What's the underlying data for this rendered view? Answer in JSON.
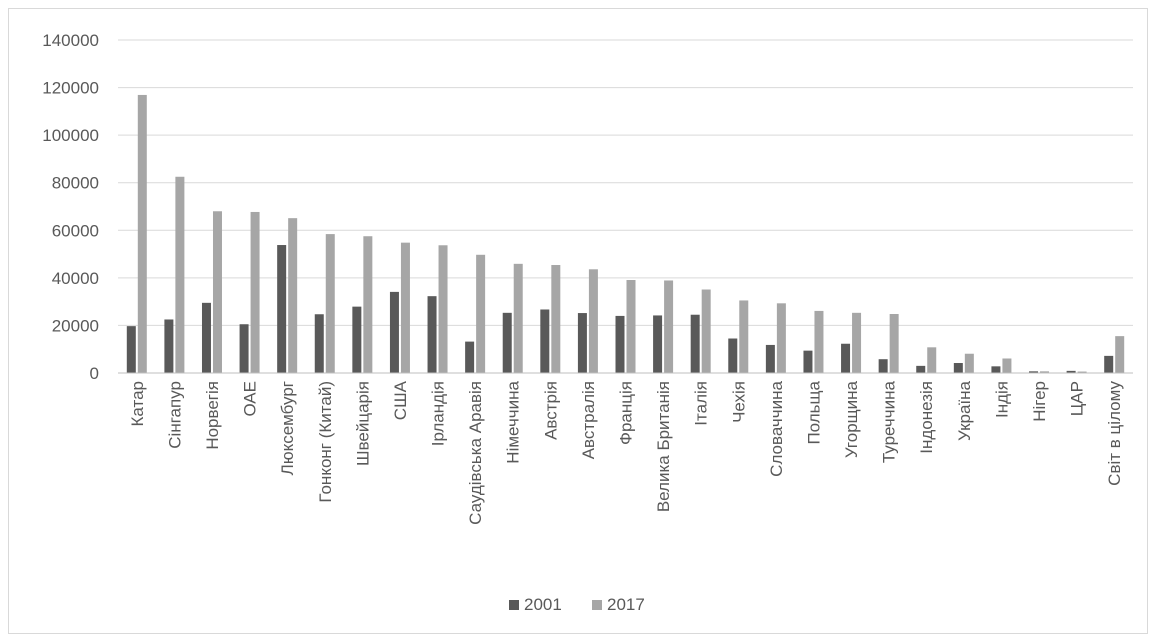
{
  "chart_data": {
    "type": "bar",
    "categories": [
      "Катар",
      "Сінгапур",
      "Норвегія",
      "ОАЕ",
      "Люксембург",
      "Гонконг (Китай)",
      "Швейцарія",
      "США",
      "Ірландія",
      "Саудівська Аравія",
      "Німеччина",
      "Австрія",
      "Австралія",
      "Франція",
      "Велика Британія",
      "Італія",
      "Чехія",
      "Словаччина",
      "Польща",
      "Угорщина",
      "Туреччина",
      "Індонезія",
      "Україна",
      "Індія",
      "Нігер",
      "ЦАР",
      "Світ в цілому"
    ],
    "series": [
      {
        "name": "2001",
        "color": "#595959",
        "values": [
          19700,
          22500,
          29500,
          20500,
          53800,
          24700,
          27900,
          34100,
          32300,
          13200,
          25300,
          26700,
          25200,
          24000,
          24200,
          24500,
          14500,
          11800,
          9400,
          12300,
          5800,
          3000,
          4200,
          2800,
          700,
          900,
          7200
        ]
      },
      {
        "name": "2017",
        "color": "#a6a6a6",
        "values": [
          116900,
          82500,
          68000,
          67700,
          65100,
          58400,
          57500,
          54800,
          53700,
          49700,
          45900,
          45400,
          43600,
          39100,
          38900,
          35100,
          30500,
          29300,
          26100,
          25300,
          24800,
          10800,
          8100,
          6100,
          700,
          600,
          15500
        ]
      }
    ],
    "yticks": [
      0,
      20000,
      40000,
      60000,
      80000,
      100000,
      120000,
      140000
    ],
    "ylim": [
      0,
      140000
    ],
    "grid": true,
    "legend_position": "bottom"
  }
}
